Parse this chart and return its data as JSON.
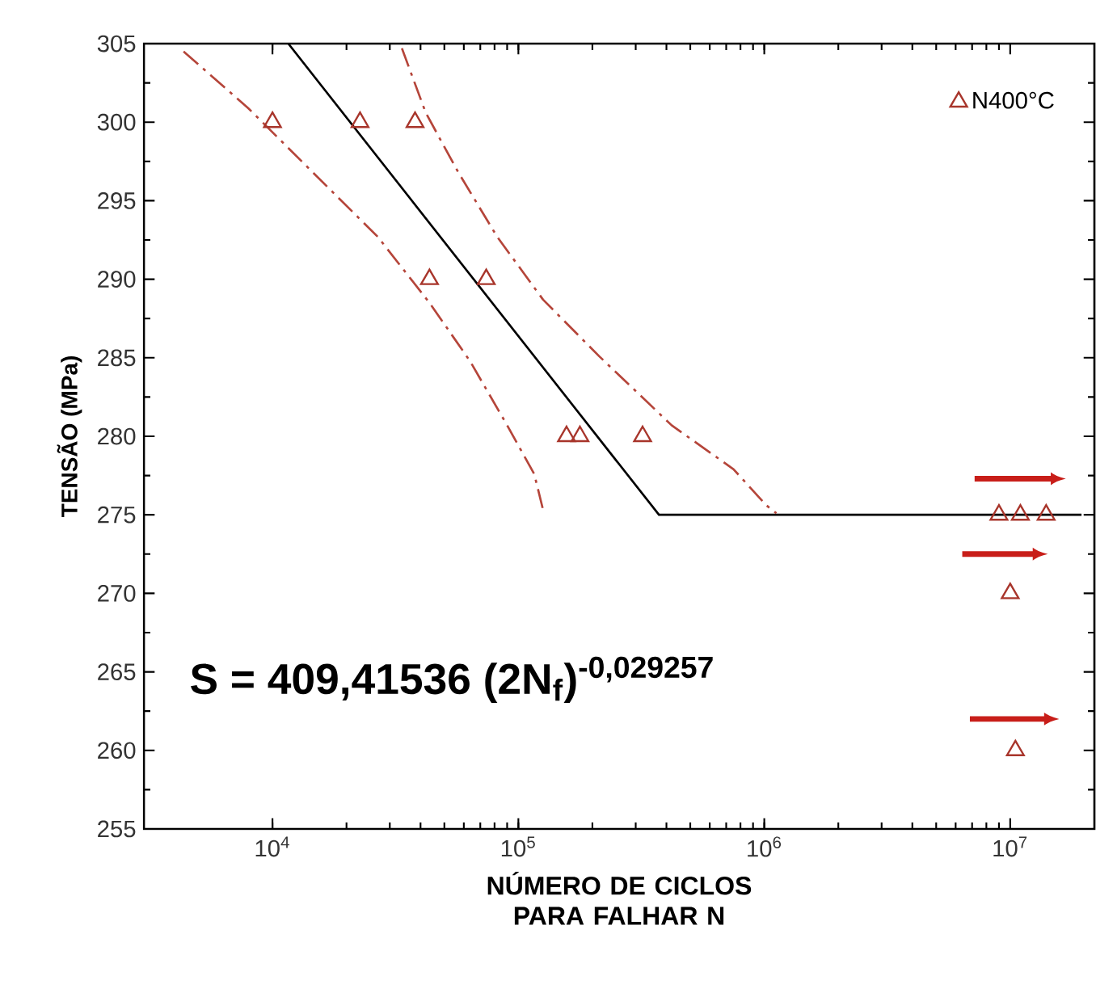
{
  "chart_data": {
    "type": "scatter",
    "xlabel": "NÚMERO DE CICLOS PARA FALHAR N",
    "ylabel": "TENSÃO (MPa)",
    "log": "x",
    "xlim": [
      3000,
      22000000
    ],
    "ylim": [
      255,
      305
    ],
    "xticks": [
      {
        "value": 10000,
        "label": "10$^{4}$"
      },
      {
        "value": 100000,
        "label": "10$^{5}$"
      },
      {
        "value": 1000000,
        "label": "10$^{6}$"
      },
      {
        "value": 10000000,
        "label": "10$^{7}$"
      }
    ],
    "yticks": [
      255,
      260,
      265,
      270,
      275,
      280,
      285,
      290,
      295,
      300,
      305
    ],
    "legend": "top right",
    "grid": false,
    "annotations": [
      "**S = 409,41536 (2N$_{f}$)$^{-0,029257}$**"
    ],
    "series": [
      {
        "name": "N400°C",
        "type": "scatter",
        "marker": "triangle",
        "color": "#a8352b",
        "x": [
          10000,
          22700,
          38000,
          43500,
          74000,
          157000,
          178000,
          320000,
          9000000,
          11000000,
          14000000,
          10000000,
          10500000
        ],
        "values": [
          300,
          300,
          300,
          290,
          290,
          280,
          280,
          280,
          275,
          275,
          275,
          270,
          260
        ]
      },
      {
        "type": "line",
        "marker": "none",
        "line_style": "solid",
        "color": "#000000",
        "x": [
          11600,
          373000,
          19500000
        ],
        "values": [
          305,
          275,
          275
        ]
      },
      {
        "type": "line",
        "marker": "none",
        "line_style": "dashed",
        "color": "#b5453a",
        "x": [
          4350,
          7960,
          14600,
          26800,
          43500,
          63500,
          90000,
          116000,
          127000
        ],
        "values": [
          304.5,
          300.9,
          296.8,
          292.7,
          288.5,
          284.8,
          280.7,
          277.6,
          275.1
        ]
      },
      {
        "type": "line",
        "marker": "none",
        "line_style": "dashed",
        "color": "#b5453a",
        "x": [
          33600,
          42000,
          57000,
          82000,
          126000,
          213000,
          420000,
          750000,
          1020000,
          1120000
        ],
        "values": [
          304.7,
          300.6,
          296.8,
          292.7,
          288.7,
          285.1,
          280.7,
          277.9,
          275.6,
          275.1
        ]
      }
    ]
  }
}
